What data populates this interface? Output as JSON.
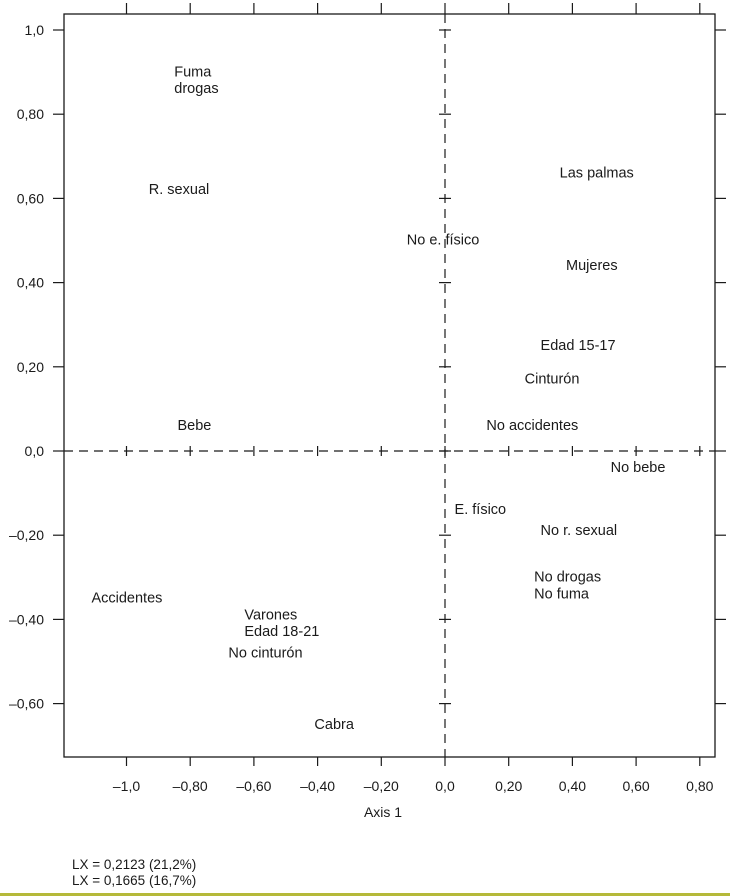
{
  "chart_data": {
    "type": "scatter",
    "title": "",
    "xlabel": "Axis 1",
    "ylabel": "",
    "xlim": [
      -1.2,
      0.84
    ],
    "ylim": [
      -0.73,
      1.03
    ],
    "grid": false,
    "x_ticks": [
      -1.0,
      -0.8,
      -0.6,
      -0.4,
      -0.2,
      0.0,
      0.2,
      0.4,
      0.6,
      0.8
    ],
    "x_tick_labels": [
      "–1,0",
      "–0,80",
      "–0,60",
      "–0,40",
      "–0,20",
      "0,0",
      "0,20",
      "0,40",
      "0,60",
      "0,80"
    ],
    "y_ticks": [
      1.0,
      0.8,
      0.6,
      0.4,
      0.2,
      0.0,
      -0.2,
      -0.4,
      -0.6
    ],
    "y_tick_labels": [
      "1,0",
      "0,80",
      "0,60",
      "0,40",
      "0,20",
      "0,0",
      "–0,20",
      "–0,40",
      "–0,60"
    ],
    "points": [
      {
        "label": "Fuma",
        "x": -0.85,
        "y": 0.89
      },
      {
        "label": "drogas",
        "x": -0.85,
        "y": 0.85
      },
      {
        "label": "R. sexual",
        "x": -0.93,
        "y": 0.61
      },
      {
        "label": "No e. físico",
        "x": -0.12,
        "y": 0.49
      },
      {
        "label": "Las palmas",
        "x": 0.36,
        "y": 0.65
      },
      {
        "label": "Mujeres",
        "x": 0.38,
        "y": 0.43
      },
      {
        "label": "Edad 15-17",
        "x": 0.3,
        "y": 0.24
      },
      {
        "label": "Cinturón",
        "x": 0.25,
        "y": 0.16
      },
      {
        "label": "Bebe",
        "x": -0.84,
        "y": 0.05
      },
      {
        "label": "No accidentes",
        "x": 0.13,
        "y": 0.05
      },
      {
        "label": "No bebe",
        "x": 0.52,
        "y": -0.05
      },
      {
        "label": "E. físico",
        "x": 0.03,
        "y": -0.15
      },
      {
        "label": "No r. sexual",
        "x": 0.3,
        "y": -0.2
      },
      {
        "label": "No drogas",
        "x": 0.28,
        "y": -0.31
      },
      {
        "label": "No fuma",
        "x": 0.28,
        "y": -0.35
      },
      {
        "label": "Accidentes",
        "x": -1.11,
        "y": -0.36
      },
      {
        "label": "Varones",
        "x": -0.63,
        "y": -0.4
      },
      {
        "label": "Edad 18-21",
        "x": -0.63,
        "y": -0.44
      },
      {
        "label": "No cinturón",
        "x": -0.68,
        "y": -0.49
      },
      {
        "label": "Cabra",
        "x": -0.41,
        "y": -0.66
      }
    ]
  },
  "footnotes": [
    "LX = 0,2123 (21,2%)",
    "LX = 0,1665 (16,7%)"
  ],
  "colors": {
    "ink": "#1a1a1a",
    "rule": "#b5b93a"
  }
}
